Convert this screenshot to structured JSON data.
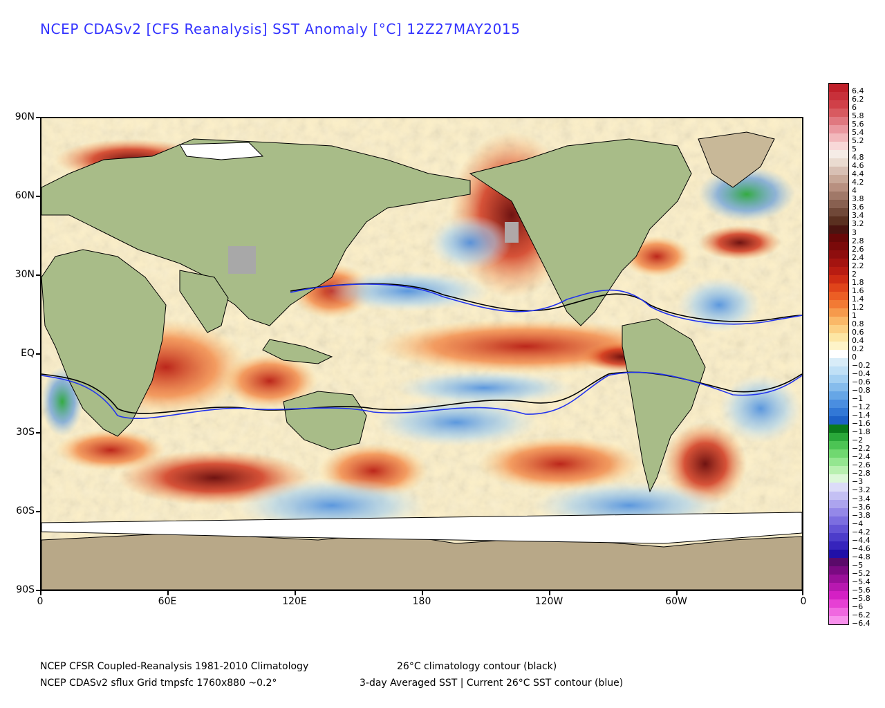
{
  "title": "NCEP CDASv2 [CFS Reanalysis] SST Anomaly [°C] 12Z27MAY2015",
  "y_axis": [
    "90N",
    "60N",
    "30N",
    "EQ",
    "30S",
    "60S",
    "90S"
  ],
  "x_axis": [
    "0",
    "60E",
    "120E",
    "180",
    "120W",
    "60W",
    "0"
  ],
  "legend": {
    "labels": [
      "6.4",
      "6.2",
      "6",
      "5.8",
      "5.6",
      "5.4",
      "5.2",
      "5",
      "4.8",
      "4.6",
      "4.4",
      "4.2",
      "4",
      "3.8",
      "3.6",
      "3.4",
      "3.2",
      "3",
      "2.8",
      "2.6",
      "2.4",
      "2.2",
      "2",
      "1.8",
      "1.6",
      "1.4",
      "1.2",
      "1",
      "0.8",
      "0.6",
      "0.4",
      "0.2",
      "0",
      "−0.2",
      "−0.4",
      "−0.6",
      "−0.8",
      "−1",
      "−1.2",
      "−1.4",
      "−1.6",
      "−1.8",
      "−2",
      "−2.2",
      "−2.4",
      "−2.6",
      "−2.8",
      "−3",
      "−3.2",
      "−3.4",
      "−3.6",
      "−3.8",
      "−4",
      "−4.2",
      "−4.4",
      "−4.6",
      "−4.8",
      "−5",
      "−5.2",
      "−5.4",
      "−5.6",
      "−5.8",
      "−6",
      "−6.2",
      "−6.4"
    ],
    "colors": [
      "#c0202a",
      "#c8303a",
      "#d04048",
      "#d85a60",
      "#e07880",
      "#ea98a0",
      "#f2b8bc",
      "#f8d8d8",
      "#f5ece6",
      "#eadbd0",
      "#d8c0b4",
      "#c8a898",
      "#b89080",
      "#a07868",
      "#886050",
      "#704838",
      "#5a3020",
      "#4a1410",
      "#680808",
      "#7a0a0a",
      "#8e0e0e",
      "#a41410",
      "#b81c12",
      "#ce2c14",
      "#e0441a",
      "#ec5e24",
      "#f27a34",
      "#f69a4c",
      "#fab868",
      "#fcd084",
      "#fde6a4",
      "#fef4c8",
      "#ffffff",
      "#d8ecf8",
      "#c0e0f6",
      "#a4d0f2",
      "#86bcec",
      "#66a6e6",
      "#4a8ee0",
      "#3278d6",
      "#1e62c8",
      "#0a7a1c",
      "#2aa83a",
      "#4cc454",
      "#70d870",
      "#94e690",
      "#b8f0b0",
      "#dcf8d8",
      "#dcdcf8",
      "#c4c0f4",
      "#aca4ee",
      "#9488e8",
      "#7c6ee0",
      "#6454d6",
      "#4c3cca",
      "#3624bc",
      "#2010a8",
      "#5a0a6a",
      "#7a0a82",
      "#9a109a",
      "#b818b0",
      "#d420c4",
      "#e640d4",
      "#f068e0",
      "#f890ec"
    ]
  },
  "footer": {
    "line1_left": "NCEP CFSR Coupled-Reanalysis 1981-2010 Climatology",
    "line1_right": "26°C climatology contour (black)",
    "line2_left": "NCEP CDASv2 sflux Grid tmpsfc 1760x880 ~0.2°",
    "line2_right": "3-day Averaged SST | Current 26°C SST contour (blue)"
  }
}
